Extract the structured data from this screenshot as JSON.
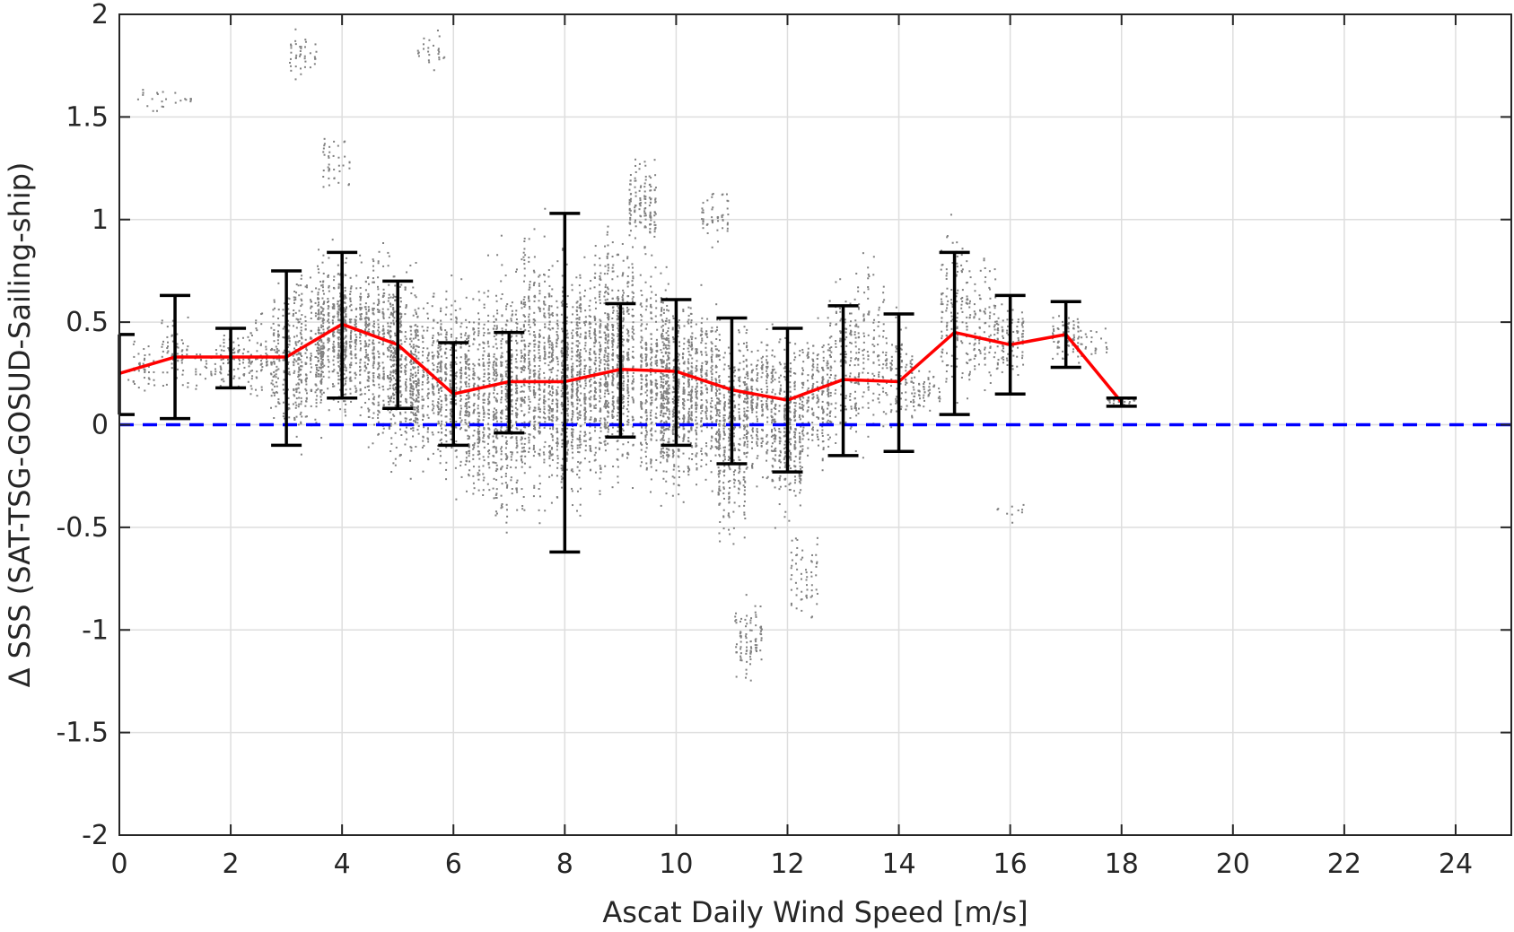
{
  "chart_data": {
    "type": "scatter",
    "xlabel": "Ascat Daily Wind Speed [m/s]",
    "ylabel": "Δ SSS (SAT-TSG-GOSUD-Sailing-ship)",
    "xlim": [
      0,
      25
    ],
    "ylim": [
      -2,
      2
    ],
    "xticks": [
      "0",
      "2",
      "4",
      "6",
      "8",
      "10",
      "12",
      "14",
      "16",
      "18",
      "20",
      "22",
      "24"
    ],
    "yticks": [
      "2",
      "1.5",
      "1",
      "0.5",
      "0",
      "-0.5",
      "-1",
      "-1.5",
      "-2"
    ],
    "grid": true,
    "reference_line": {
      "y": 0,
      "color": "#0000ff",
      "style": "dashed"
    },
    "scatter_color": "#808080",
    "mean_line_color": "#ff0000",
    "errorbar_color": "#000000",
    "mean_series": {
      "x": [
        0,
        1,
        2,
        3,
        4,
        5,
        6,
        7,
        8,
        9,
        10,
        11,
        12,
        13,
        14,
        15,
        16,
        17,
        18
      ],
      "mean": [
        0.25,
        0.33,
        0.33,
        0.33,
        0.49,
        0.39,
        0.15,
        0.21,
        0.21,
        0.27,
        0.26,
        0.17,
        0.12,
        0.22,
        0.21,
        0.45,
        0.39,
        0.44,
        0.11
      ],
      "upper": [
        0.44,
        0.63,
        0.47,
        0.75,
        0.84,
        0.7,
        0.4,
        0.45,
        1.03,
        0.59,
        0.61,
        0.52,
        0.47,
        0.58,
        0.54,
        0.84,
        0.63,
        0.6,
        0.13
      ],
      "lower": [
        0.05,
        0.03,
        0.18,
        -0.1,
        0.13,
        0.08,
        -0.1,
        -0.04,
        -0.62,
        -0.06,
        -0.1,
        -0.19,
        -0.23,
        -0.15,
        -0.13,
        0.05,
        0.15,
        0.28,
        0.09
      ]
    },
    "scatter_clusters": [
      {
        "x": 0.4,
        "y0": 0.1,
        "y1": 0.45,
        "n": 40
      },
      {
        "x": 0.55,
        "y0": 1.5,
        "y1": 1.68,
        "n": 15
      },
      {
        "x": 1.0,
        "y0": 0.1,
        "y1": 0.6,
        "n": 60
      },
      {
        "x": 1.05,
        "y0": 1.55,
        "y1": 1.62,
        "n": 10
      },
      {
        "x": 1.6,
        "y0": 0.15,
        "y1": 0.45,
        "n": 40
      },
      {
        "x": 2.1,
        "y0": 0.15,
        "y1": 0.5,
        "n": 70
      },
      {
        "x": 2.6,
        "y0": 0.0,
        "y1": 0.6,
        "n": 90
      },
      {
        "x": 3.0,
        "y0": -0.15,
        "y1": 0.8,
        "n": 180
      },
      {
        "x": 3.4,
        "y0": -0.2,
        "y1": 0.85,
        "n": 220
      },
      {
        "x": 3.3,
        "y0": 1.65,
        "y1": 1.95,
        "n": 40
      },
      {
        "x": 3.8,
        "y0": 0.0,
        "y1": 0.95,
        "n": 330
      },
      {
        "x": 4.2,
        "y0": -0.05,
        "y1": 0.9,
        "n": 320
      },
      {
        "x": 3.9,
        "y0": 1.05,
        "y1": 1.5,
        "n": 40
      },
      {
        "x": 4.7,
        "y0": -0.25,
        "y1": 0.95,
        "n": 320
      },
      {
        "x": 5.1,
        "y0": -0.35,
        "y1": 0.9,
        "n": 300
      },
      {
        "x": 5.5,
        "y0": -0.3,
        "y1": 0.75,
        "n": 260
      },
      {
        "x": 5.6,
        "y0": 1.7,
        "y1": 1.95,
        "n": 25
      },
      {
        "x": 6.0,
        "y0": -0.4,
        "y1": 0.8,
        "n": 330
      },
      {
        "x": 6.5,
        "y0": -0.55,
        "y1": 0.85,
        "n": 370
      },
      {
        "x": 7.0,
        "y0": -0.65,
        "y1": 0.95,
        "n": 420
      },
      {
        "x": 7.5,
        "y0": -0.6,
        "y1": 1.1,
        "n": 450
      },
      {
        "x": 8.0,
        "y0": -0.55,
        "y1": 0.95,
        "n": 470
      },
      {
        "x": 8.5,
        "y0": -0.5,
        "y1": 1.0,
        "n": 470
      },
      {
        "x": 9.0,
        "y0": -0.45,
        "y1": 1.1,
        "n": 470
      },
      {
        "x": 9.4,
        "y0": 0.8,
        "y1": 1.35,
        "n": 140
      },
      {
        "x": 9.6,
        "y0": -0.45,
        "y1": 0.9,
        "n": 420
      },
      {
        "x": 10.0,
        "y0": -0.5,
        "y1": 0.8,
        "n": 420
      },
      {
        "x": 10.5,
        "y0": -0.4,
        "y1": 0.75,
        "n": 370
      },
      {
        "x": 10.7,
        "y0": 0.8,
        "y1": 1.2,
        "n": 50
      },
      {
        "x": 11.0,
        "y0": -0.75,
        "y1": 0.65,
        "n": 370
      },
      {
        "x": 11.3,
        "y0": -1.3,
        "y1": -0.8,
        "n": 90
      },
      {
        "x": 11.5,
        "y0": -0.4,
        "y1": 0.6,
        "n": 300
      },
      {
        "x": 12.0,
        "y0": -0.55,
        "y1": 0.55,
        "n": 300
      },
      {
        "x": 12.3,
        "y0": -1.05,
        "y1": -0.45,
        "n": 60
      },
      {
        "x": 12.5,
        "y0": -0.3,
        "y1": 0.6,
        "n": 220
      },
      {
        "x": 13.0,
        "y0": -0.25,
        "y1": 0.85,
        "n": 170
      },
      {
        "x": 13.5,
        "y0": -0.2,
        "y1": 0.95,
        "n": 130
      },
      {
        "x": 14.0,
        "y0": -0.1,
        "y1": 0.6,
        "n": 100
      },
      {
        "x": 14.5,
        "y0": 0.0,
        "y1": 0.3,
        "n": 60
      },
      {
        "x": 15.0,
        "y0": 0.0,
        "y1": 1.1,
        "n": 130
      },
      {
        "x": 15.5,
        "y0": 0.1,
        "y1": 0.85,
        "n": 110
      },
      {
        "x": 16.0,
        "y0": 0.15,
        "y1": 0.65,
        "n": 90
      },
      {
        "x": 16.0,
        "y0": -0.48,
        "y1": -0.38,
        "n": 10
      },
      {
        "x": 17.0,
        "y0": 0.25,
        "y1": 0.6,
        "n": 70
      },
      {
        "x": 17.5,
        "y0": 0.3,
        "y1": 0.5,
        "n": 25
      },
      {
        "x": 18.0,
        "y0": 0.08,
        "y1": 0.15,
        "n": 20
      }
    ]
  }
}
